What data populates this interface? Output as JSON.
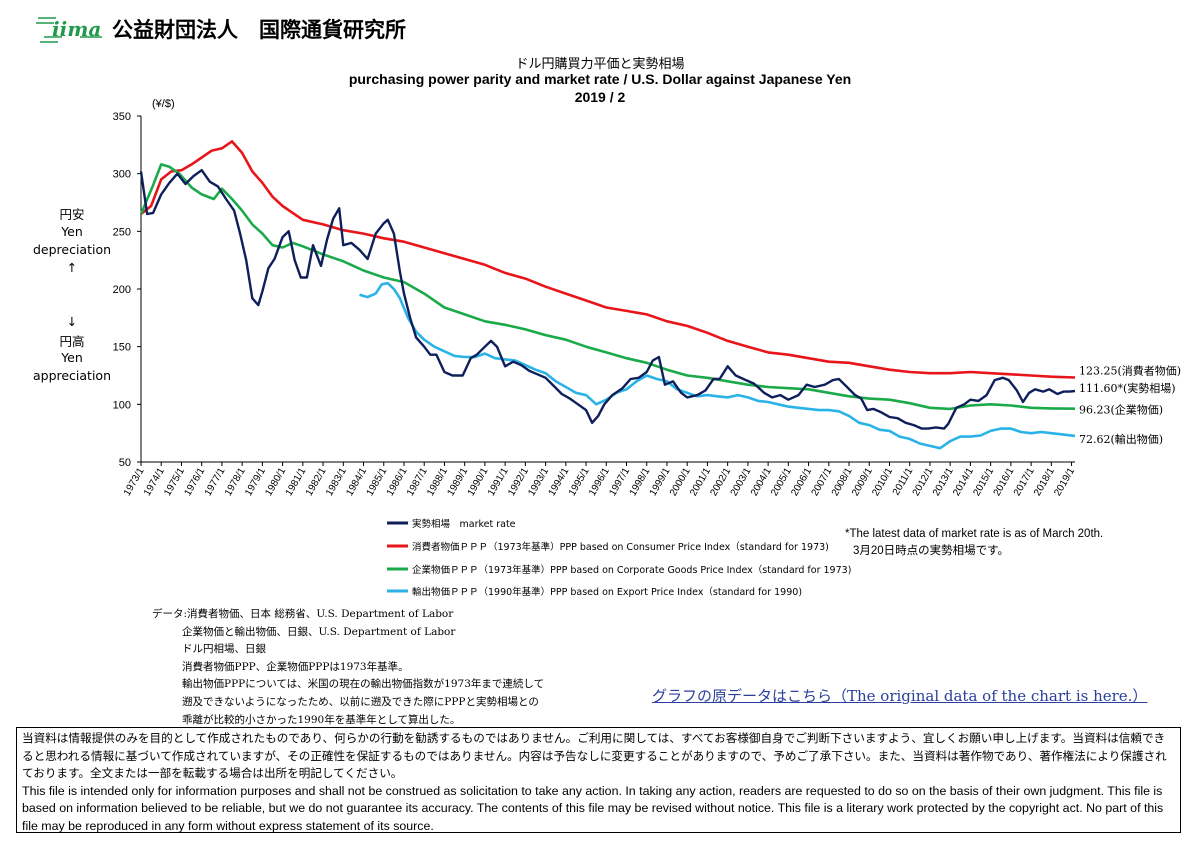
{
  "header": {
    "logo_text": "iima",
    "org_name": "公益財団法人　国際通貨研究所"
  },
  "chart_data": {
    "type": "line",
    "title_jp": "ドル円購買力平価と実勢相場",
    "title": "purchasing power parity and market rate / U.S. Dollar against Japanese Yen",
    "subtitle": "2019 / 2",
    "y_unit": "(¥/$)",
    "ylim": [
      50,
      350
    ],
    "yticks": [
      50,
      100,
      150,
      200,
      250,
      300,
      350
    ],
    "xlim": [
      1973,
      2019.17
    ],
    "xtick_labels": [
      "1973/1",
      "1974/1",
      "1975/1",
      "1976/1",
      "1977/1",
      "1978/1",
      "1979/1",
      "1980/1",
      "1981/1",
      "1982/1",
      "1983/1",
      "1984/1",
      "1985/1",
      "1986/1",
      "1987/1",
      "1988/1",
      "1989/1",
      "1990/1",
      "1991/1",
      "1992/1",
      "1993/1",
      "1994/1",
      "1995/1",
      "1996/1",
      "1997/1",
      "1998/1",
      "1999/1",
      "2000/1",
      "2001/1",
      "2002/1",
      "2003/1",
      "2004/1",
      "2005/1",
      "2006/1",
      "2007/1",
      "2008/1",
      "2009/1",
      "2010/1",
      "2011/1",
      "2012/1",
      "2013/1",
      "2014/1",
      "2015/1",
      "2016/1",
      "2017/1",
      "2018/1",
      "2019/1"
    ],
    "y_side_labels": {
      "up": [
        "円安",
        "Yen",
        "depreciation",
        "↑"
      ],
      "down": [
        "↓",
        "円高",
        "Yen",
        "appreciation"
      ]
    },
    "series": [
      {
        "name": "実勢相場　market rate",
        "color": "#0e1f5b",
        "end_label": "111.60*(実勢相場)",
        "x": [
          1973.0,
          1973.3,
          1973.6,
          1974.0,
          1974.4,
          1974.8,
          1975.2,
          1975.6,
          1976.0,
          1976.4,
          1976.8,
          1977.2,
          1977.6,
          1977.9,
          1978.2,
          1978.5,
          1978.8,
          1979.0,
          1979.3,
          1979.6,
          1980.0,
          1980.3,
          1980.6,
          1980.9,
          1981.2,
          1981.5,
          1981.9,
          1982.2,
          1982.5,
          1982.8,
          1983.0,
          1983.4,
          1983.8,
          1984.2,
          1984.6,
          1985.0,
          1985.2,
          1985.5,
          1985.8,
          1986.0,
          1986.3,
          1986.6,
          1987.0,
          1987.3,
          1987.6,
          1988.0,
          1988.4,
          1988.9,
          1989.3,
          1989.6,
          1990.0,
          1990.3,
          1990.6,
          1991.0,
          1991.4,
          1991.8,
          1992.2,
          1992.6,
          1993.0,
          1993.4,
          1993.8,
          1994.2,
          1994.6,
          1995.0,
          1995.3,
          1995.6,
          1995.9,
          1996.3,
          1996.8,
          1997.2,
          1997.6,
          1998.0,
          1998.3,
          1998.6,
          1998.9,
          1999.3,
          1999.7,
          2000.0,
          2000.5,
          2000.9,
          2001.3,
          2001.6,
          2002.0,
          2002.4,
          2002.9,
          2003.3,
          2003.8,
          2004.2,
          2004.6,
          2005.0,
          2005.5,
          2005.9,
          2006.3,
          2006.8,
          2007.2,
          2007.5,
          2007.9,
          2008.3,
          2008.6,
          2008.9,
          2009.2,
          2009.6,
          2010.0,
          2010.4,
          2010.8,
          2011.2,
          2011.6,
          2011.9,
          2012.3,
          2012.7,
          2012.9,
          2013.3,
          2013.7,
          2014.0,
          2014.4,
          2014.8,
          2015.2,
          2015.6,
          2015.9,
          2016.3,
          2016.6,
          2016.9,
          2017.2,
          2017.6,
          2017.9,
          2018.3,
          2018.6,
          2018.9,
          2019.17
        ],
        "values": [
          302,
          265,
          266,
          282,
          292,
          300,
          291,
          298,
          303,
          293,
          289,
          278,
          268,
          248,
          225,
          192,
          186,
          198,
          218,
          226,
          245,
          250,
          225,
          210,
          210,
          238,
          220,
          243,
          261,
          270,
          238,
          240,
          234,
          226,
          248,
          257,
          260,
          248,
          215,
          196,
          175,
          158,
          150,
          143,
          143,
          128,
          125,
          125,
          140,
          143,
          150,
          155,
          150,
          133,
          137,
          134,
          129,
          126,
          123,
          116,
          109,
          105,
          100,
          95,
          84,
          90,
          100,
          108,
          114,
          122,
          123,
          128,
          138,
          141,
          117,
          120,
          110,
          106,
          108,
          112,
          122,
          122,
          133,
          125,
          121,
          118,
          110,
          106,
          108,
          104,
          108,
          117,
          115,
          117,
          121,
          122,
          115,
          108,
          105,
          95,
          96,
          93,
          89,
          88,
          84,
          82,
          79,
          79,
          80,
          79,
          83,
          97,
          100,
          104,
          103,
          108,
          121,
          123,
          121,
          112,
          102,
          110,
          113,
          111,
          113,
          109,
          111,
          111,
          111.6
        ]
      },
      {
        "name": "消費者物価ＰＰＰ（1973年基準）PPP based on Consumer Price Index（standard for 1973)",
        "color": "#e8151b",
        "end_label": "123.25(消費者物価)",
        "x": [
          1973.0,
          1973.5,
          1974.0,
          1974.5,
          1975.0,
          1975.5,
          1976.0,
          1976.5,
          1977.0,
          1977.5,
          1978.0,
          1978.5,
          1979.0,
          1979.5,
          1980.0,
          1980.5,
          1981.0,
          1982.0,
          1983.0,
          1984.0,
          1985.0,
          1986.0,
          1987.0,
          1988.0,
          1989.0,
          1990.0,
          1991.0,
          1992.0,
          1993.0,
          1994.0,
          1995.0,
          1996.0,
          1997.0,
          1998.0,
          1999.0,
          2000.0,
          2001.0,
          2002.0,
          2003.0,
          2004.0,
          2005.0,
          2006.0,
          2007.0,
          2008.0,
          2009.0,
          2010.0,
          2011.0,
          2012.0,
          2013.0,
          2014.0,
          2015.0,
          2016.0,
          2017.0,
          2018.0,
          2019.17
        ],
        "values": [
          265,
          272,
          295,
          302,
          303,
          308,
          314,
          320,
          322,
          328,
          318,
          302,
          292,
          280,
          272,
          266,
          260,
          256,
          251,
          248,
          244,
          241,
          236,
          231,
          226,
          221,
          214,
          209,
          202,
          196,
          190,
          184,
          181,
          178,
          172,
          168,
          162,
          155,
          150,
          145,
          143,
          140,
          137,
          136,
          133,
          130,
          128,
          127,
          127,
          128,
          127,
          126,
          125,
          124,
          123.25
        ]
      },
      {
        "name": "企業物価ＰＰＰ（1973年基準）PPP based on Corporate Goods Price Index（standard for 1973)",
        "color": "#1aaa4a",
        "end_label": "96.23(企業物価)",
        "x": [
          1973.0,
          1973.6,
          1974.0,
          1974.4,
          1974.9,
          1975.5,
          1976.0,
          1976.6,
          1977.0,
          1977.5,
          1978.0,
          1978.5,
          1979.0,
          1979.5,
          1980.0,
          1980.5,
          1981.0,
          1982.0,
          1983.0,
          1984.0,
          1985.0,
          1986.0,
          1987.0,
          1988.0,
          1989.0,
          1990.0,
          1991.0,
          1992.0,
          1993.0,
          1994.0,
          1995.0,
          1996.0,
          1997.0,
          1998.0,
          1999.0,
          2000.0,
          2001.0,
          2002.0,
          2003.0,
          2004.0,
          2005.0,
          2006.0,
          2007.0,
          2008.0,
          2009.0,
          2010.0,
          2011.0,
          2012.0,
          2013.0,
          2014.0,
          2015.0,
          2016.0,
          2017.0,
          2018.0,
          2019.17
        ],
        "values": [
          265,
          290,
          308,
          306,
          300,
          288,
          282,
          278,
          287,
          278,
          268,
          256,
          248,
          238,
          236,
          240,
          237,
          230,
          224,
          216,
          210,
          206,
          196,
          184,
          178,
          172,
          169,
          165,
          160,
          156,
          150,
          145,
          140,
          136,
          130,
          125,
          123,
          120,
          117,
          115,
          114,
          113,
          110,
          107,
          105,
          104,
          101,
          97,
          96,
          99,
          100,
          99,
          97,
          96.5,
          96.23
        ]
      },
      {
        "name": "輸出物価ＰＰＰ（1990年基準）PPP based on Export Price Index（standard for 1990)",
        "color": "#2ab3e6",
        "end_label": "72.62(輸出物価)",
        "x": [
          1983.8,
          1984.2,
          1984.6,
          1984.9,
          1985.2,
          1985.5,
          1985.8,
          1986.2,
          1986.6,
          1987.0,
          1987.5,
          1988.0,
          1988.5,
          1989.0,
          1989.5,
          1990.0,
          1990.5,
          1991.0,
          1991.5,
          1992.0,
          1992.5,
          1993.0,
          1993.5,
          1994.0,
          1994.5,
          1995.0,
          1995.5,
          1996.0,
          1996.5,
          1997.0,
          1997.5,
          1998.0,
          1998.5,
          1999.0,
          1999.5,
          2000.0,
          2000.5,
          2001.0,
          2001.5,
          2002.0,
          2002.5,
          2003.0,
          2003.5,
          2004.0,
          2004.5,
          2005.0,
          2005.5,
          2006.0,
          2006.5,
          2007.0,
          2007.5,
          2008.0,
          2008.5,
          2009.0,
          2009.5,
          2010.0,
          2010.5,
          2011.0,
          2011.5,
          2012.0,
          2012.5,
          2013.0,
          2013.5,
          2014.0,
          2014.5,
          2015.0,
          2015.5,
          2016.0,
          2016.5,
          2017.0,
          2017.5,
          2018.0,
          2018.5,
          2019.17
        ],
        "values": [
          195,
          193,
          196,
          204,
          205,
          200,
          192,
          175,
          163,
          156,
          150,
          146,
          142,
          141,
          141,
          144,
          140,
          139,
          138,
          134,
          130,
          127,
          120,
          115,
          110,
          108,
          100,
          104,
          110,
          113,
          120,
          125,
          122,
          120,
          113,
          110,
          107,
          108,
          107,
          106,
          108,
          106,
          103,
          102,
          100,
          98,
          97,
          96,
          95,
          95,
          94,
          90,
          84,
          82,
          78,
          77,
          72,
          70,
          66,
          64,
          62,
          68,
          72,
          72,
          73,
          77,
          79,
          79,
          76,
          75,
          76,
          75,
          74,
          72.62
        ]
      }
    ],
    "latest_note": [
      "*The latest data of market rate is as of March 20th.",
      "3月20日時点の実勢相場です。"
    ]
  },
  "source_notes": [
    "データ:消費者物価、日本 総務省、U.S. Department of Labor",
    "企業物価と輸出物価、日銀、U.S. Department of Labor",
    "ドル円相場、日銀",
    "消費者物価PPP、企業物価PPPは1973年基準。",
    "輸出物価PPPについては、米国の現在の輸出物価指数が1973年まで連続して",
    "遡及できないようになったため、以前に遡及できた際にPPPと実勢相場との",
    "乖離が比較的小さかった1990年を基準年として算出した。"
  ],
  "data_link": "グラフの原データはこちら（The original data of the chart is here.）",
  "disclaimer": {
    "jp": "当資料は情報提供のみを目的として作成されたものであり、何らかの行動を勧誘するものではありません。ご利用に関しては、すべてお客様御自身でご判断下さいますよう、宜しくお願い申し上げます。当資料は信頼できると思われる情報に基づいて作成されていますが、その正確性を保証するものではありません。内容は予告なしに変更することがありますので、予めご了承下さい。また、当資料は著作物であり、著作権法により保護されております。全文または一部を転載する場合は出所を明記してください。",
    "en": "This file is intended only for information purposes and shall not be construed as solicitation to take any action. In taking any action, readers are requested to do so on the basis of their own judgment. This file is based on information believed to be reliable, but we do not guarantee its accuracy. The contents of this file may be revised without notice. This file is a literary work protected by the copyright act. No part of this file may be reproduced in any form without express statement of its source."
  }
}
